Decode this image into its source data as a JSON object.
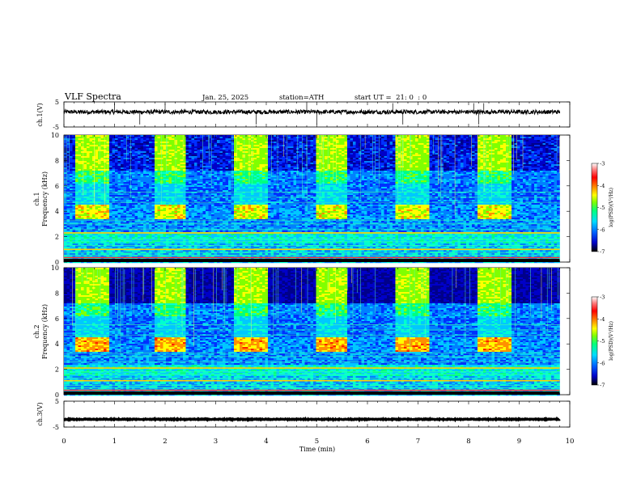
{
  "header": {
    "title": "VLF Spectra",
    "date": "Jan. 25, 2025",
    "station": "station=ATH",
    "start": "start UT =  21: 0  : 0"
  },
  "colorbar": {
    "label": "log(PSD)(V²/Hz)",
    "ticks": [
      -3,
      -4,
      -5,
      -6,
      -7
    ],
    "stops": [
      "#000000",
      "#0000c8",
      "#0064ff",
      "#00dcff",
      "#00ff80",
      "#80ff00",
      "#ffff00",
      "#ff8000",
      "#ff0000",
      "#ff8080",
      "#ffffff"
    ]
  },
  "chart_data": [
    {
      "type": "line",
      "panel": "ch1-waveform",
      "ylabel": "ch.1(V)",
      "ylim": [
        -5,
        5
      ],
      "yticks": [
        5,
        -5
      ],
      "xlim": [
        0,
        10
      ],
      "series": [
        {
          "approx_level_V": 1.0,
          "noise_V": 0.8
        }
      ],
      "color": "#000000"
    },
    {
      "type": "heatmap",
      "panel": "ch1-spectrogram",
      "ylabel": "Frequency (kHz)",
      "channel_label": "ch.1",
      "ylim": [
        0,
        10
      ],
      "yticks": [
        0,
        2,
        4,
        6,
        8,
        10
      ],
      "xlim": [
        0,
        10
      ],
      "data_end_min": 9.8,
      "transmitter_on_intervals_min": [
        [
          0.2,
          0.85
        ],
        [
          1.75,
          2.4
        ],
        [
          3.35,
          4.0
        ],
        [
          4.95,
          5.6
        ],
        [
          6.55,
          7.2
        ],
        [
          8.15,
          8.8
        ]
      ],
      "transmitter_band_kHz": [
        3.5,
        4.5
      ],
      "strong_lines_kHz": [
        0.35,
        1.0,
        2.3
      ]
    },
    {
      "type": "heatmap",
      "panel": "ch2-spectrogram",
      "ylabel": "Frequency (kHz)",
      "channel_label": "ch.2",
      "ylim": [
        0,
        10
      ],
      "yticks": [
        0,
        2,
        4,
        6,
        8,
        10
      ],
      "xlim": [
        0,
        10
      ],
      "data_end_min": 9.8,
      "transmitter_on_intervals_min": [
        [
          0.2,
          0.85
        ],
        [
          1.75,
          2.4
        ],
        [
          3.35,
          4.0
        ],
        [
          4.95,
          5.6
        ],
        [
          6.55,
          7.2
        ],
        [
          8.15,
          8.8
        ]
      ],
      "transmitter_band_kHz": [
        3.5,
        4.5
      ],
      "strong_lines_kHz": [
        0.35,
        1.1,
        2.1
      ]
    },
    {
      "type": "line",
      "panel": "ch3-waveform",
      "ylabel": "ch.3(V)",
      "ylim": [
        -5,
        5
      ],
      "yticks": [
        5,
        -5
      ],
      "xlim": [
        0,
        10
      ],
      "series": [
        {
          "approx_level_V": -2.0,
          "noise_V": 0.15
        }
      ],
      "xlabel": "Time (min)",
      "xticks": [
        0,
        1,
        2,
        3,
        4,
        5,
        6,
        7,
        8,
        9,
        10
      ]
    }
  ]
}
